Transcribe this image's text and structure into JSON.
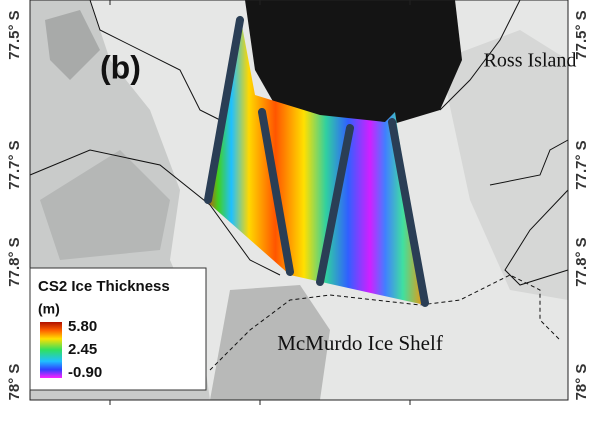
{
  "panel_label": "(b)",
  "places": [
    "Ross Island",
    "McMurdo Ice Shelf"
  ],
  "latitude_ticks_left": [
    "77.5° S",
    "77.7° S",
    "77.8° S",
    "78° S"
  ],
  "latitude_ticks_right": [
    "77.5° S",
    "77.7° S",
    "77.8° S",
    "78° S"
  ],
  "legend": {
    "title": "CS2 Ice Thickness",
    "unit": "(m)",
    "ticks": [
      "5.80",
      "2.45",
      "-0.90"
    ]
  }
}
